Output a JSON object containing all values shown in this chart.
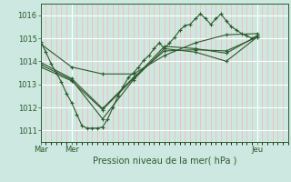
{
  "bg_color": "#cce8e0",
  "grid_color_major": "#ffffff",
  "grid_color_minor": "#ffb0b0",
  "line_color": "#2d5a2d",
  "marker_color": "#2d5a2d",
  "xlabel": "Pression niveau de la mer( hPa )",
  "xlim": [
    0,
    48
  ],
  "ylim": [
    1010.5,
    1016.5
  ],
  "yticks": [
    1011,
    1012,
    1013,
    1014,
    1015,
    1016
  ],
  "xtick_positions": [
    0,
    6,
    42
  ],
  "xtick_labels": [
    "Mar",
    "Mer",
    "Jeu"
  ],
  "series": [
    [
      0,
      1014.85,
      1,
      1014.4,
      2,
      1013.9,
      3,
      1013.5,
      4,
      1013.1,
      5,
      1012.6,
      6,
      1012.2,
      7,
      1011.7,
      8,
      1011.2,
      9,
      1011.1,
      10,
      1011.1,
      11,
      1011.1,
      12,
      1011.15,
      13,
      1011.5,
      14,
      1012.0,
      15,
      1012.5,
      16,
      1012.9,
      17,
      1013.3,
      18,
      1013.5,
      19,
      1013.75,
      20,
      1014.05,
      21,
      1014.25,
      22,
      1014.55,
      23,
      1014.8,
      24,
      1014.55,
      25,
      1014.8,
      26,
      1015.05,
      27,
      1015.35,
      28,
      1015.55,
      29,
      1015.6,
      30,
      1015.85,
      31,
      1016.05,
      32,
      1015.85,
      33,
      1015.6,
      34,
      1015.85,
      35,
      1016.05,
      36,
      1015.75,
      37,
      1015.5,
      38,
      1015.35,
      39,
      1015.2,
      40,
      1015.1,
      41,
      1015.0,
      42,
      1015.1
    ],
    [
      0,
      1013.85,
      6,
      1013.2,
      12,
      1011.5,
      18,
      1013.2,
      24,
      1014.55,
      30,
      1014.4,
      36,
      1014.0,
      42,
      1015.05
    ],
    [
      0,
      1013.75,
      6,
      1013.15,
      12,
      1011.9,
      18,
      1013.25,
      24,
      1014.65,
      30,
      1014.55,
      36,
      1014.35,
      42,
      1015.1
    ],
    [
      0,
      1013.95,
      6,
      1013.25,
      12,
      1011.95,
      18,
      1013.3,
      24,
      1014.45,
      30,
      1014.5,
      36,
      1014.45,
      42,
      1015.05
    ],
    [
      0,
      1014.75,
      6,
      1013.75,
      12,
      1013.45,
      18,
      1013.45,
      24,
      1014.25,
      30,
      1014.8,
      36,
      1015.15,
      42,
      1015.2
    ]
  ]
}
